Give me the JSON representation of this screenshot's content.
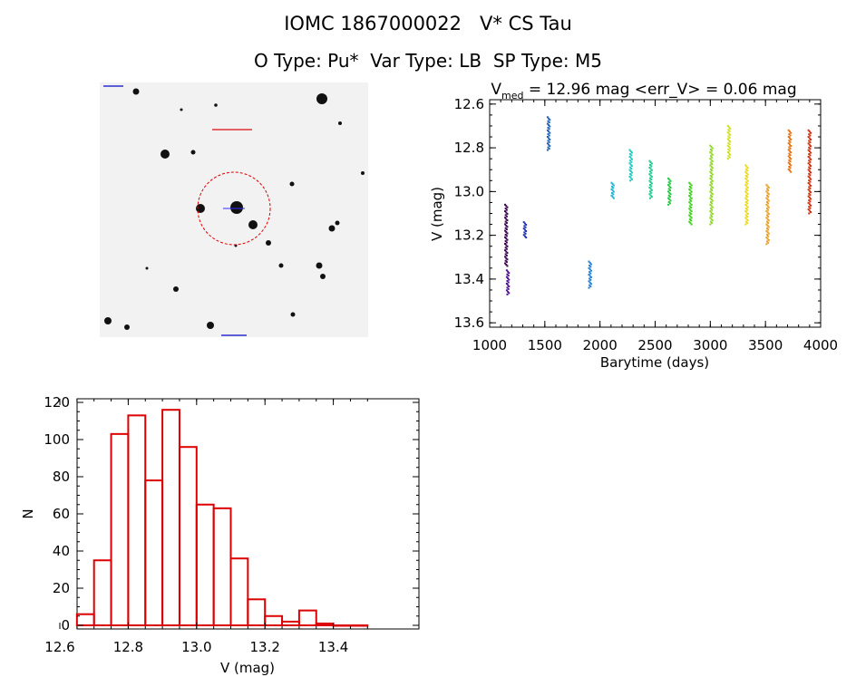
{
  "header": {
    "title": "IOMC 1867000022   V* CS Tau",
    "subtitle": "O Type: Pu*  Var Type: LB  SP Type: M5"
  },
  "image_stamp": {
    "kind": "grayscale star field finder chart"
  },
  "chart_data": [
    {
      "type": "scatter",
      "title_prefix": "V",
      "title_subscript": "med",
      "title_suffix": " = 12.96 mag <err_V> = 0.06 mag",
      "xlabel": "Barytime (days)",
      "ylabel": "V (mag)",
      "xlim": [
        1000,
        4000
      ],
      "ylim": [
        13.62,
        12.58
      ],
      "y_inverted": true,
      "xticks": [
        1000,
        1500,
        2000,
        2500,
        3000,
        3500,
        4000
      ],
      "yticks": [
        12.6,
        12.8,
        13.0,
        13.2,
        13.4,
        13.6
      ],
      "xtick_labels": [
        "1000",
        "1500",
        "2000",
        "2500",
        "3000",
        "3500",
        "4000"
      ],
      "ytick_labels": [
        "12.6",
        "12.8",
        "13.0",
        "13.2",
        "13.4",
        "13.6"
      ],
      "grid": false,
      "groups": [
        {
          "x": 1150,
          "ymin": 13.06,
          "ymax": 13.34,
          "color": "#3a0050"
        },
        {
          "x": 1165,
          "ymin": 13.36,
          "ymax": 13.47,
          "color": "#4a1090"
        },
        {
          "x": 1320,
          "ymin": 13.14,
          "ymax": 13.21,
          "color": "#2030b0"
        },
        {
          "x": 1535,
          "ymin": 12.66,
          "ymax": 12.81,
          "color": "#2060b0"
        },
        {
          "x": 1910,
          "ymin": 13.32,
          "ymax": 13.44,
          "color": "#2080d0"
        },
        {
          "x": 2115,
          "ymin": 12.96,
          "ymax": 13.03,
          "color": "#20b0d0"
        },
        {
          "x": 2280,
          "ymin": 12.81,
          "ymax": 12.95,
          "color": "#20c8c0"
        },
        {
          "x": 2460,
          "ymin": 12.86,
          "ymax": 13.03,
          "color": "#20c890"
        },
        {
          "x": 2630,
          "ymin": 12.94,
          "ymax": 13.06,
          "color": "#20c840"
        },
        {
          "x": 2820,
          "ymin": 12.96,
          "ymax": 13.15,
          "color": "#40d020"
        },
        {
          "x": 3010,
          "ymin": 12.79,
          "ymax": 13.15,
          "color": "#90d820"
        },
        {
          "x": 3170,
          "ymin": 12.7,
          "ymax": 12.85,
          "color": "#d0e020"
        },
        {
          "x": 3330,
          "ymin": 12.88,
          "ymax": 13.15,
          "color": "#e8d820"
        },
        {
          "x": 3520,
          "ymin": 12.97,
          "ymax": 13.24,
          "color": "#e8a020"
        },
        {
          "x": 3720,
          "ymin": 12.72,
          "ymax": 12.91,
          "color": "#e87010"
        },
        {
          "x": 3900,
          "ymin": 12.72,
          "ymax": 13.1,
          "color": "#d03010"
        }
      ]
    },
    {
      "type": "bar",
      "title": "",
      "xlabel": "V (mag)",
      "ylabel": "N",
      "xlim": [
        12.6,
        13.6
      ],
      "ylim": [
        0,
        120
      ],
      "xticks": [
        12.6,
        12.8,
        13.0,
        13.2,
        13.4
      ],
      "yticks": [
        0,
        20,
        40,
        60,
        80,
        100,
        120
      ],
      "xtick_labels": [
        "12.6",
        "12.8",
        "13.0",
        "13.2",
        "13.4"
      ],
      "ytick_labels": [
        "0",
        "20",
        "40",
        "60",
        "80",
        "100",
        "120"
      ],
      "bin_width": 0.05,
      "bin_starts": [
        12.65,
        12.7,
        12.75,
        12.8,
        12.85,
        12.9,
        12.95,
        13.0,
        13.05,
        13.1,
        13.15,
        13.2,
        13.25,
        13.3,
        13.35,
        13.4,
        13.45
      ],
      "values": [
        6,
        35,
        103,
        113,
        78,
        116,
        96,
        65,
        63,
        36,
        14,
        5,
        2,
        8,
        1,
        0,
        0
      ],
      "color": "#dd0000"
    }
  ]
}
